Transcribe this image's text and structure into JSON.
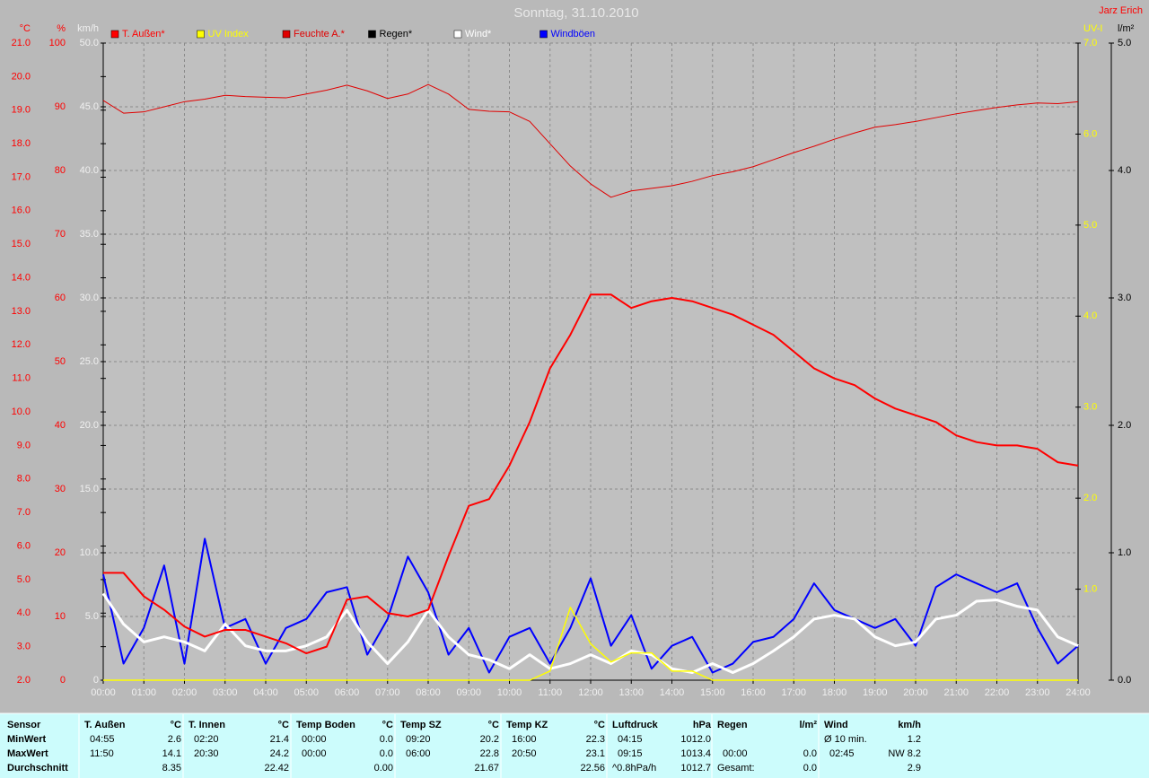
{
  "chart_data": {
    "type": "line",
    "title": "Sonntag, 31.10.2010",
    "author": "Jarz Erich",
    "x": [
      0,
      0.5,
      1,
      1.5,
      2,
      2.5,
      3,
      3.5,
      4,
      4.5,
      5,
      5.5,
      6,
      6.5,
      7,
      7.5,
      8,
      8.5,
      9,
      9.5,
      10,
      10.5,
      11,
      11.5,
      12,
      12.5,
      13,
      13.5,
      14,
      14.5,
      15,
      15.5,
      16,
      16.5,
      17,
      17.5,
      18,
      18.5,
      19,
      19.5,
      20,
      20.5,
      21,
      21.5,
      22,
      22.5,
      23,
      23.5,
      24
    ],
    "xlim": [
      0,
      24
    ],
    "xticks": [
      {
        "value": 0,
        "label": "00:00"
      },
      {
        "value": 1,
        "label": "01:00"
      },
      {
        "value": 2,
        "label": "02:00"
      },
      {
        "value": 3,
        "label": "03:00"
      },
      {
        "value": 4,
        "label": "04:00"
      },
      {
        "value": 5,
        "label": "05:00"
      },
      {
        "value": 6,
        "label": "06:00"
      },
      {
        "value": 7,
        "label": "07:00"
      },
      {
        "value": 8,
        "label": "08:00"
      },
      {
        "value": 9,
        "label": "09:00"
      },
      {
        "value": 10,
        "label": "10:00"
      },
      {
        "value": 11,
        "label": "11:00"
      },
      {
        "value": 12,
        "label": "12:00"
      },
      {
        "value": 13,
        "label": "13:00"
      },
      {
        "value": 14,
        "label": "14:00"
      },
      {
        "value": 15,
        "label": "15:00"
      },
      {
        "value": 16,
        "label": "16:00"
      },
      {
        "value": 17,
        "label": "17:00"
      },
      {
        "value": 18,
        "label": "18:00"
      },
      {
        "value": 19,
        "label": "19:00"
      },
      {
        "value": 20,
        "label": "20:00"
      },
      {
        "value": 21,
        "label": "21:00"
      },
      {
        "value": 22,
        "label": "22:00"
      },
      {
        "value": 23,
        "label": "23:00"
      },
      {
        "value": 24,
        "label": "24:00"
      }
    ],
    "grid": true,
    "axes": {
      "c": {
        "label": "°C",
        "color": "#ff0000",
        "lim": [
          2,
          21
        ],
        "ticks": [
          {
            "value": 2,
            "label": "2.0"
          },
          {
            "value": 3,
            "label": "3.0"
          },
          {
            "value": 4,
            "label": "4.0"
          },
          {
            "value": 5,
            "label": "5.0"
          },
          {
            "value": 6,
            "label": "6.0"
          },
          {
            "value": 7,
            "label": "7.0"
          },
          {
            "value": 8,
            "label": "8.0"
          },
          {
            "value": 9,
            "label": "9.0"
          },
          {
            "value": 10,
            "label": "10.0"
          },
          {
            "value": 11,
            "label": "11.0"
          },
          {
            "value": 12,
            "label": "12.0"
          },
          {
            "value": 13,
            "label": "13.0"
          },
          {
            "value": 14,
            "label": "14.0"
          },
          {
            "value": 15,
            "label": "15.0"
          },
          {
            "value": 16,
            "label": "16.0"
          },
          {
            "value": 17,
            "label": "17.0"
          },
          {
            "value": 18,
            "label": "18.0"
          },
          {
            "value": 19,
            "label": "19.0"
          },
          {
            "value": 20,
            "label": "20.0"
          },
          {
            "value": 21,
            "label": "21.0"
          }
        ]
      },
      "pct": {
        "label": "%",
        "color": "#ff0000",
        "lim": [
          0,
          100
        ],
        "ticks": [
          0,
          10,
          20,
          30,
          40,
          50,
          60,
          70,
          80,
          90,
          100
        ]
      },
      "kmh": {
        "label": "km/h",
        "color": "#f0f0f0",
        "lim": [
          0,
          50
        ],
        "ticks": [
          0,
          {
            "value": 5,
            "label": "5.0"
          },
          {
            "value": 10,
            "label": "10.0"
          },
          {
            "value": 15,
            "label": "15.0"
          },
          {
            "value": 20,
            "label": "20.0"
          },
          {
            "value": 25,
            "label": "25.0"
          },
          {
            "value": 30,
            "label": "30.0"
          },
          {
            "value": 35,
            "label": "35.0"
          },
          {
            "value": 40,
            "label": "40.0"
          },
          {
            "value": 45,
            "label": "45.0"
          },
          {
            "value": 50,
            "label": "50.0"
          }
        ]
      },
      "uv": {
        "label": "UV-I",
        "color": "#ffff00",
        "lim": [
          0,
          7
        ],
        "ticks": [
          {
            "value": 1,
            "label": "1.0"
          },
          {
            "value": 2,
            "label": "2.0"
          },
          {
            "value": 3,
            "label": "3.0"
          },
          {
            "value": 4,
            "label": "4.0"
          },
          {
            "value": 5,
            "label": "5.0"
          },
          {
            "value": 6,
            "label": "6.0"
          },
          {
            "value": 7,
            "label": "7.0"
          }
        ]
      },
      "rain": {
        "label": "l/m²",
        "color": "#000000",
        "lim": [
          0,
          5
        ],
        "ticks": [
          {
            "value": 0,
            "label": "0.0"
          },
          {
            "value": 1,
            "label": "1.0"
          },
          {
            "value": 2,
            "label": "2.0"
          },
          {
            "value": 3,
            "label": "3.0"
          },
          {
            "value": 4,
            "label": "4.0"
          },
          {
            "value": 5,
            "label": "5.0"
          }
        ]
      }
    },
    "grid_axis": "kmh",
    "series": [
      {
        "name": "T. Außen*",
        "color": "#ff0000",
        "axis": "c",
        "width": 2,
        "values": [
          5.2,
          5.2,
          4.5,
          4.1,
          3.6,
          3.3,
          3.5,
          3.5,
          3.3,
          3.1,
          2.8,
          3.0,
          4.4,
          4.5,
          4.0,
          3.9,
          4.1,
          5.7,
          7.2,
          7.4,
          8.4,
          9.7,
          11.3,
          12.3,
          13.5,
          13.5,
          13.1,
          13.3,
          13.4,
          13.3,
          13.1,
          12.9,
          12.6,
          12.3,
          11.8,
          11.3,
          11.0,
          10.8,
          10.4,
          10.1,
          9.9,
          9.7,
          9.3,
          9.1,
          9.0,
          9.0,
          8.9,
          8.5,
          8.4
        ]
      },
      {
        "name": "UV Index",
        "color": "#ffff00",
        "axis": "uv",
        "width": 1.5,
        "values": [
          0,
          0,
          0,
          0,
          0,
          0,
          0,
          0,
          0,
          0,
          0,
          0,
          0,
          0,
          0,
          0,
          0,
          0,
          0,
          0,
          0,
          0,
          0.1,
          0.8,
          0.4,
          0.2,
          0.3,
          0.3,
          0.1,
          0.1,
          0,
          0,
          0,
          0,
          0,
          0,
          0,
          0,
          0,
          0,
          0,
          0,
          0,
          0,
          0,
          0,
          0,
          0,
          0
        ]
      },
      {
        "name": "Feuchte A.*",
        "color": "#e00000",
        "axis": "pct",
        "width": 1,
        "values": [
          91,
          89,
          89.2,
          90,
          90.8,
          91.2,
          91.8,
          91.6,
          91.5,
          91.4,
          92,
          92.6,
          93.4,
          92.5,
          91.3,
          92,
          93.5,
          92,
          89.6,
          89.3,
          89.2,
          87.7,
          84.2,
          80.7,
          77.9,
          75.8,
          76.8,
          77.2,
          77.6,
          78.3,
          79.2,
          79.8,
          80.6,
          81.7,
          82.8,
          83.8,
          84.9,
          85.9,
          86.8,
          87.2,
          87.7,
          88.3,
          88.9,
          89.4,
          89.9,
          90.3,
          90.6,
          90.5,
          90.8
        ]
      },
      {
        "name": "Regen*",
        "color": "#000000",
        "axis": "rain",
        "width": 1,
        "values": [
          0,
          0,
          0,
          0,
          0,
          0,
          0,
          0,
          0,
          0,
          0,
          0,
          0,
          0,
          0,
          0,
          0,
          0,
          0,
          0,
          0,
          0,
          0,
          0,
          0,
          0,
          0,
          0,
          0,
          0,
          0,
          0,
          0,
          0,
          0,
          0,
          0,
          0,
          0,
          0,
          0,
          0,
          0,
          0,
          0,
          0,
          0,
          0,
          0
        ]
      },
      {
        "name": "Wind*",
        "color": "#ffffff",
        "axis": "kmh",
        "width": 3,
        "values": [
          6.8,
          4.4,
          3.0,
          3.4,
          3.0,
          2.3,
          4.4,
          2.7,
          2.3,
          2.3,
          2.7,
          3.4,
          5.5,
          3.0,
          1.3,
          3.0,
          5.5,
          3.4,
          2.0,
          1.6,
          0.9,
          2.0,
          0.9,
          1.3,
          2.0,
          1.3,
          2.3,
          2.0,
          0.9,
          0.6,
          1.3,
          0.6,
          1.3,
          2.3,
          3.4,
          4.8,
          5.1,
          4.8,
          3.4,
          2.7,
          3.0,
          4.8,
          5.1,
          6.2,
          6.3,
          5.8,
          5.5,
          3.4,
          2.7
        ]
      },
      {
        "name": "Windböen",
        "color": "#0000ff",
        "axis": "kmh",
        "width": 2,
        "values": [
          8.3,
          1.3,
          4.1,
          9.0,
          1.3,
          11.1,
          4.1,
          4.8,
          1.3,
          4.1,
          4.8,
          6.9,
          7.3,
          2.0,
          4.8,
          9.7,
          6.9,
          2.0,
          4.1,
          0.6,
          3.4,
          4.1,
          1.3,
          4.1,
          8.0,
          2.7,
          5.1,
          0.9,
          2.7,
          3.4,
          0.6,
          1.3,
          3.0,
          3.4,
          4.8,
          7.6,
          5.5,
          4.8,
          4.1,
          4.8,
          2.7,
          7.3,
          8.3,
          7.6,
          6.9,
          7.6,
          4.1,
          1.3,
          2.7
        ]
      }
    ],
    "draw_order": [
      3,
      5,
      4,
      1,
      2,
      0
    ]
  },
  "table": {
    "row_labels": [
      "Sensor",
      "MinWert",
      "MaxWert",
      "Durchschnitt"
    ],
    "groups": [
      {
        "name": "T. Außen",
        "unit": "°C",
        "rows": [
          [
            "04:55",
            "2.6"
          ],
          [
            "11:50",
            "14.1"
          ],
          [
            null,
            "8.35"
          ]
        ]
      },
      {
        "name": "T. Innen",
        "unit": "°C",
        "rows": [
          [
            "02:20",
            "21.4"
          ],
          [
            "20:30",
            "24.2"
          ],
          [
            null,
            "22.42"
          ]
        ]
      },
      {
        "name": "Temp Boden",
        "unit": "°C",
        "rows": [
          [
            "00:00",
            "0.0"
          ],
          [
            "00:00",
            "0.0"
          ],
          [
            null,
            "0.00"
          ]
        ]
      },
      {
        "name": "Temp SZ",
        "unit": "°C",
        "rows": [
          [
            "09:20",
            "20.2"
          ],
          [
            "06:00",
            "22.8"
          ],
          [
            null,
            "21.67"
          ]
        ]
      },
      {
        "name": "Temp KZ",
        "unit": "°C",
        "rows": [
          [
            "16:00",
            "22.3"
          ],
          [
            "20:50",
            "23.1"
          ],
          [
            null,
            "22.56"
          ]
        ]
      },
      {
        "name": "Luftdruck",
        "unit": "hPa",
        "rows": [
          [
            "04:15",
            "1012.0"
          ],
          [
            "09:15",
            "1013.4"
          ],
          [
            "^0.8hPa/h",
            "1012.7"
          ]
        ]
      },
      {
        "name": "Regen",
        "unit": "l/m²",
        "rows": [
          [
            null,
            null
          ],
          [
            "00:00",
            "0.0"
          ],
          [
            "Gesamt:",
            "0.0"
          ]
        ]
      },
      {
        "name": "Wind",
        "unit": "km/h",
        "rows": [
          [
            "Ø 10 min.",
            "1.2"
          ],
          [
            "02:45",
            "NW 8.2"
          ],
          [
            null,
            "2.9"
          ]
        ]
      }
    ]
  }
}
